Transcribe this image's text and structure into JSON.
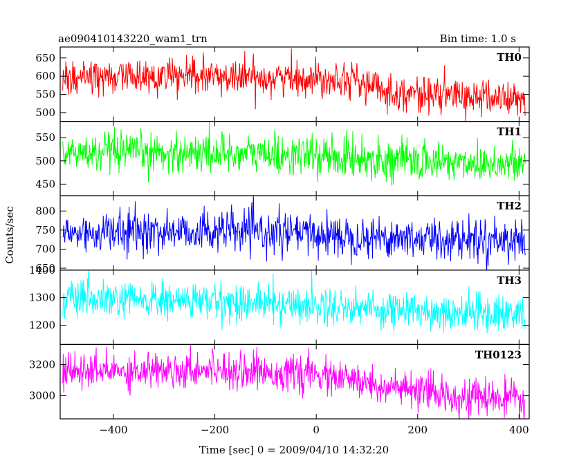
{
  "header": {
    "title": "ae090410143220_wam1_trn",
    "bin_time": "Bin time: 1.0 s"
  },
  "xlabel": "Time [sec] 0 = 2009/04/10 14:32:20",
  "ylabel": "Counts/sec",
  "chart_data": {
    "type": "line",
    "title": "ae090410143220_wam1_trn",
    "xlabel": "Time [sec] 0 = 2009/04/10 14:32:20",
    "ylabel": "Counts/sec",
    "xlim": [
      -505,
      420
    ],
    "x_range_data": [
      -500,
      412
    ],
    "bin_time_s": 1.0,
    "xticks": [
      -400,
      -200,
      0,
      200,
      400
    ],
    "x_tick_labels": [
      "−400",
      "−200",
      "0",
      "200",
      "400"
    ],
    "panels": [
      {
        "name": "TH0",
        "color": "#ff0000",
        "ylim": [
          476,
          680
        ],
        "yticks": [
          500,
          550,
          600,
          650
        ],
        "y_tick_labels": [
          "500",
          "550",
          "600",
          "650"
        ],
        "trend_x": [
          -500,
          -300,
          -100,
          0,
          60,
          100,
          150,
          250,
          412
        ],
        "trend_y": [
          600,
          598,
          597,
          594,
          598,
          575,
          555,
          548,
          535
        ],
        "noise_sd": 24
      },
      {
        "name": "TH1",
        "color": "#00ff00",
        "ylim": [
          425,
          585
        ],
        "yticks": [
          450,
          500,
          550
        ],
        "y_tick_labels": [
          "450",
          "500",
          "550"
        ],
        "trend_x": [
          -500,
          -200,
          0,
          200,
          412
        ],
        "trend_y": [
          515,
          518,
          510,
          500,
          492
        ],
        "noise_sd": 21
      },
      {
        "name": "TH2",
        "color": "#0000ff",
        "ylim": [
          645,
          840
        ],
        "yticks": [
          650,
          700,
          750,
          800
        ],
        "y_tick_labels": [
          "650",
          "700",
          "750",
          "800"
        ],
        "trend_x": [
          -500,
          -200,
          0,
          200,
          412
        ],
        "trend_y": [
          742,
          748,
          738,
          728,
          725
        ],
        "noise_sd": 27
      },
      {
        "name": "TH3",
        "color": "#00ffff",
        "ylim": [
          1130,
          1400
        ],
        "yticks": [
          1200,
          1300,
          1400
        ],
        "y_tick_labels": [
          "1200",
          "1300",
          "1400"
        ],
        "trend_x": [
          -500,
          -200,
          0,
          200,
          412
        ],
        "trend_y": [
          1290,
          1288,
          1272,
          1252,
          1240
        ],
        "noise_sd": 34
      },
      {
        "name": "TH0123",
        "color": "#ff00ff",
        "ylim": [
          2850,
          3330
        ],
        "yticks": [
          3000,
          3200
        ],
        "y_tick_labels": [
          "3000",
          "3200"
        ],
        "trend_x": [
          -500,
          -200,
          0,
          100,
          200,
          412
        ],
        "trend_y": [
          3150,
          3175,
          3130,
          3080,
          3020,
          2965
        ],
        "noise_sd": 58
      }
    ]
  }
}
